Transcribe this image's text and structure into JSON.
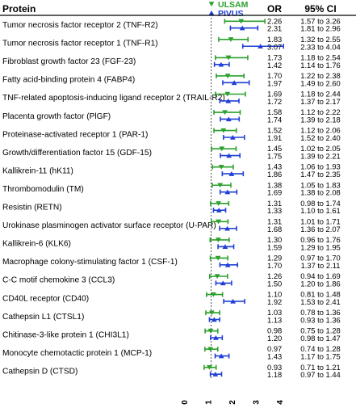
{
  "chart_data": {
    "type": "forest",
    "title": "",
    "column_headers": {
      "protein": "Protein",
      "or": "OR",
      "ci": "95% CI"
    },
    "xlim": [
      0,
      4
    ],
    "x_ticks": [
      0,
      1,
      2,
      3,
      4
    ],
    "reference_line": 1,
    "series": [
      {
        "name": "ULSAM",
        "marker": "triangle-down",
        "color": "#2ca02c"
      },
      {
        "name": "PIVUS",
        "marker": "triangle-up",
        "color": "#1f3fd6"
      }
    ],
    "rows": [
      {
        "protein": "Tumor necrosis factor receptor 2 (TNF-R2)",
        "ulsam": {
          "or": 2.26,
          "ci": [
            1.57,
            3.26
          ],
          "or_text": "2.26",
          "ci_text": "1.57 to 3.26"
        },
        "pivus": {
          "or": 2.31,
          "ci": [
            1.81,
            2.96
          ],
          "or_text": "2.31",
          "ci_text": "1.81 to 2.96"
        }
      },
      {
        "protein": "Tumor necrosis factor receptor 1 (TNF-R1)",
        "ulsam": {
          "or": 1.83,
          "ci": [
            1.32,
            2.55
          ],
          "or_text": "1.83",
          "ci_text": "1.32 to 2.55"
        },
        "pivus": {
          "or": 3.07,
          "ci": [
            2.33,
            4.04
          ],
          "or_text": "3.07",
          "ci_text": "2.33 to 4.04"
        }
      },
      {
        "protein": "Fibroblast growth factor 23 (FGF-23)",
        "ulsam": {
          "or": 1.73,
          "ci": [
            1.18,
            2.54
          ],
          "or_text": "1.73",
          "ci_text": "1.18 to 2.54"
        },
        "pivus": {
          "or": 1.42,
          "ci": [
            1.14,
            1.76
          ],
          "or_text": "1.42",
          "ci_text": "1.14 to 1.76"
        }
      },
      {
        "protein": "Fatty acid-binding protein 4 (FABP4)",
        "ulsam": {
          "or": 1.7,
          "ci": [
            1.22,
            2.38
          ],
          "or_text": "1.70",
          "ci_text": "1.22 to 2.38"
        },
        "pivus": {
          "or": 1.97,
          "ci": [
            1.49,
            2.6
          ],
          "or_text": "1.97",
          "ci_text": "1.49 to 2.60"
        }
      },
      {
        "protein": "TNF-related apoptosis-inducing ligand receptor 2 (TRAIL-R2)",
        "ulsam": {
          "or": 1.69,
          "ci": [
            1.18,
            2.44
          ],
          "or_text": "1.69",
          "ci_text": "1.18 to 2.44"
        },
        "pivus": {
          "or": 1.72,
          "ci": [
            1.37,
            2.17
          ],
          "or_text": "1.72",
          "ci_text": "1.37 to 2.17"
        }
      },
      {
        "protein": "Placenta growth factor (PlGF)",
        "ulsam": {
          "or": 1.58,
          "ci": [
            1.12,
            2.22
          ],
          "or_text": "1.58",
          "ci_text": "1.12 to 2.22"
        },
        "pivus": {
          "or": 1.74,
          "ci": [
            1.39,
            2.18
          ],
          "or_text": "1.74",
          "ci_text": "1.39 to 2.18"
        }
      },
      {
        "protein": "Proteinase-activated receptor 1 (PAR-1)",
        "ulsam": {
          "or": 1.52,
          "ci": [
            1.12,
            2.06
          ],
          "or_text": "1.52",
          "ci_text": "1.12 to 2.06"
        },
        "pivus": {
          "or": 1.91,
          "ci": [
            1.52,
            2.4
          ],
          "or_text": "1.91",
          "ci_text": "1.52 to 2.40"
        }
      },
      {
        "protein": "Growth/differentiation factor 15 (GDF-15)",
        "ulsam": {
          "or": 1.45,
          "ci": [
            1.02,
            2.05
          ],
          "or_text": "1.45",
          "ci_text": "1.02 to 2.05"
        },
        "pivus": {
          "or": 1.75,
          "ci": [
            1.39,
            2.21
          ],
          "or_text": "1.75",
          "ci_text": "1.39 to 2.21"
        }
      },
      {
        "protein": "Kallikrein-11 (hK11)",
        "ulsam": {
          "or": 1.43,
          "ci": [
            1.06,
            1.93
          ],
          "or_text": "1.43",
          "ci_text": "1.06 to 1.93"
        },
        "pivus": {
          "or": 1.86,
          "ci": [
            1.47,
            2.35
          ],
          "or_text": "1.86",
          "ci_text": "1.47 to 2.35"
        }
      },
      {
        "protein": "Thrombomodulin (TM)",
        "ulsam": {
          "or": 1.38,
          "ci": [
            1.05,
            1.83
          ],
          "or_text": "1.38",
          "ci_text": "1.05 to 1.83"
        },
        "pivus": {
          "or": 1.69,
          "ci": [
            1.38,
            2.08
          ],
          "or_text": "1.69",
          "ci_text": "1.38 to 2.08"
        }
      },
      {
        "protein": "Resistin (RETN)",
        "ulsam": {
          "or": 1.31,
          "ci": [
            0.98,
            1.74
          ],
          "or_text": "1.31",
          "ci_text": "0.98 to 1.74"
        },
        "pivus": {
          "or": 1.33,
          "ci": [
            1.1,
            1.61
          ],
          "or_text": "1.33",
          "ci_text": "1.10 to 1.61"
        }
      },
      {
        "protein": "Urokinase plasminogen activator surface receptor (U-PAR)",
        "ulsam": {
          "or": 1.31,
          "ci": [
            1.01,
            1.71
          ],
          "or_text": "1.31",
          "ci_text": "1.01 to 1.71"
        },
        "pivus": {
          "or": 1.68,
          "ci": [
            1.36,
            2.07
          ],
          "or_text": "1.68",
          "ci_text": "1.36 to 2.07"
        }
      },
      {
        "protein": "Kallikrein-6 (KLK6)",
        "ulsam": {
          "or": 1.3,
          "ci": [
            0.96,
            1.76
          ],
          "or_text": "1.30",
          "ci_text": "0.96 to 1.76"
        },
        "pivus": {
          "or": 1.59,
          "ci": [
            1.29,
            1.95
          ],
          "or_text": "1.59",
          "ci_text": "1.29 to 1.95"
        }
      },
      {
        "protein": "Macrophage colony-stimulating factor 1 (CSF-1)",
        "ulsam": {
          "or": 1.29,
          "ci": [
            0.97,
            1.7
          ],
          "or_text": "1.29",
          "ci_text": "0.97 to 1.70"
        },
        "pivus": {
          "or": 1.7,
          "ci": [
            1.37,
            2.11
          ],
          "or_text": "1.70",
          "ci_text": "1.37 to 2.11"
        }
      },
      {
        "protein": "C-C motif chemokine 3 (CCL3)",
        "ulsam": {
          "or": 1.26,
          "ci": [
            0.94,
            1.69
          ],
          "or_text": "1.26",
          "ci_text": "0.94 to 1.69"
        },
        "pivus": {
          "or": 1.5,
          "ci": [
            1.2,
            1.86
          ],
          "or_text": "1.50",
          "ci_text": "1.20 to 1.86"
        }
      },
      {
        "protein": "CD40L receptor (CD40)",
        "ulsam": {
          "or": 1.1,
          "ci": [
            0.81,
            1.48
          ],
          "or_text": "1.10",
          "ci_text": "0.81 to 1.48"
        },
        "pivus": {
          "or": 1.92,
          "ci": [
            1.53,
            2.41
          ],
          "or_text": "1.92",
          "ci_text": "1.53 to 2.41"
        }
      },
      {
        "protein": "Cathepsin L1 (CTSL1)",
        "ulsam": {
          "or": 1.03,
          "ci": [
            0.78,
            1.36
          ],
          "or_text": "1.03",
          "ci_text": "0.78 to 1.36"
        },
        "pivus": {
          "or": 1.13,
          "ci": [
            0.93,
            1.36
          ],
          "or_text": "1.13",
          "ci_text": "0.93 to 1.36"
        }
      },
      {
        "protein": "Chitinase-3-like protein 1 (CHI3L1)",
        "ulsam": {
          "or": 0.98,
          "ci": [
            0.75,
            1.28
          ],
          "or_text": "0.98",
          "ci_text": "0.75 to 1.28"
        },
        "pivus": {
          "or": 1.2,
          "ci": [
            0.98,
            1.47
          ],
          "or_text": "1.20",
          "ci_text": "0.98 to 1.47"
        }
      },
      {
        "protein": "Monocyte chemotactic protein 1 (MCP-1)",
        "ulsam": {
          "or": 0.97,
          "ci": [
            0.74,
            1.28
          ],
          "or_text": "0.97",
          "ci_text": "0.74 to 1.28"
        },
        "pivus": {
          "or": 1.43,
          "ci": [
            1.17,
            1.75
          ],
          "or_text": "1.43",
          "ci_text": "1.17 to 1.75"
        }
      },
      {
        "protein": "Cathepsin D (CTSD)",
        "ulsam": {
          "or": 0.93,
          "ci": [
            0.71,
            1.21
          ],
          "or_text": "0.93",
          "ci_text": "0.71 to 1.21"
        },
        "pivus": {
          "or": 1.18,
          "ci": [
            0.97,
            1.44
          ],
          "or_text": "1.18",
          "ci_text": "0.97 to 1.44"
        }
      }
    ]
  }
}
